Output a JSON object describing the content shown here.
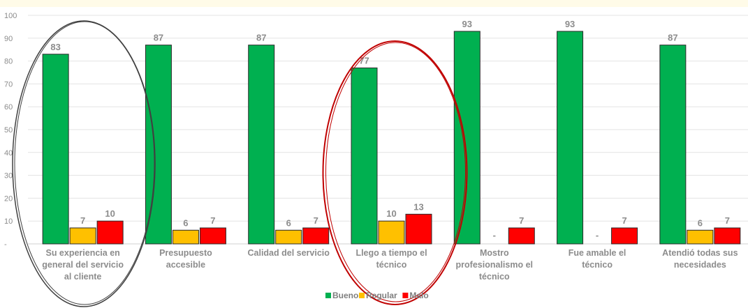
{
  "chart_data": {
    "type": "bar",
    "categories": [
      [
        "Su experiencia en",
        "general del servicio",
        "al cliente"
      ],
      [
        "Presupuesto",
        "accesible"
      ],
      [
        "Calidad del servicio"
      ],
      [
        "Llego a tiempo el",
        "técnico"
      ],
      [
        "Mostro",
        "profesionalismo el",
        "técnico"
      ],
      [
        "Fue amable el",
        "técnico"
      ],
      [
        "Atendió todas sus",
        "necesidades"
      ]
    ],
    "series": [
      {
        "name": "Bueno",
        "color": "#00b050",
        "values": [
          83,
          87,
          87,
          77,
          93,
          93,
          87
        ],
        "labels": [
          "83",
          "87",
          "87",
          "77",
          "93",
          "93",
          "87"
        ]
      },
      {
        "name": "Regular",
        "color": "#ffc000",
        "values": [
          7,
          6,
          6,
          10,
          0,
          0,
          6
        ],
        "labels": [
          "7",
          "6",
          "6",
          "10",
          "-",
          "-",
          "6"
        ]
      },
      {
        "name": "Malo",
        "color": "#ff0000",
        "values": [
          10,
          7,
          7,
          13,
          7,
          7,
          7
        ],
        "labels": [
          "10",
          "7",
          "7",
          "13",
          "7",
          "7",
          "7"
        ]
      }
    ],
    "yticks": [
      "100",
      "90",
      "80",
      "70",
      "60",
      "50",
      "40",
      "30",
      "20",
      "10",
      "-"
    ],
    "ylim": [
      0,
      100
    ],
    "grid": true,
    "legend": "bottom-center",
    "annotations": [
      {
        "type": "ellipse",
        "category_index": 0,
        "color": "#404040"
      },
      {
        "type": "ellipse",
        "category_index": 3,
        "color": "#c00000"
      }
    ]
  }
}
